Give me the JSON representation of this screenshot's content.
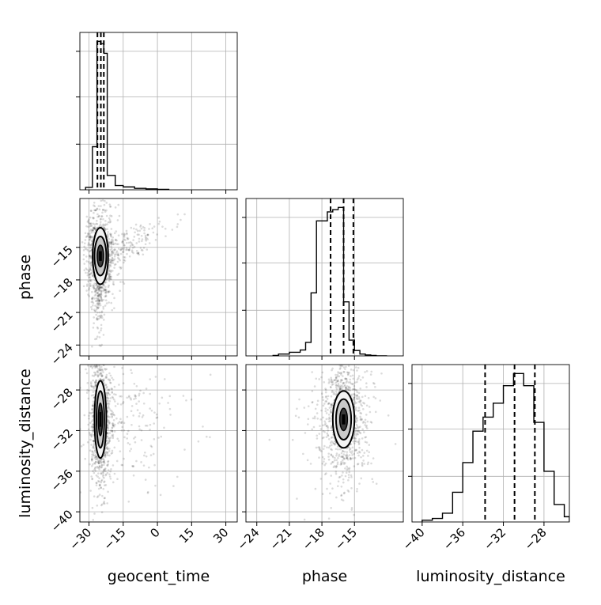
{
  "chart_data": {
    "type": "corner",
    "grid": true,
    "parameters": [
      "geocent_time",
      "phase",
      "luminosity_distance"
    ],
    "axes": {
      "geocent_time": {
        "label": "geocent_time",
        "range": [
          -34,
          35
        ],
        "ticks": [
          -30,
          -15,
          0,
          15,
          30
        ],
        "tick_labels": [
          "−30",
          "−15",
          "0",
          "15",
          "30"
        ]
      },
      "phase": {
        "label": "phase",
        "range": [
          -25,
          -10.5
        ],
        "ticks": [
          -24,
          -21,
          -18,
          -15
        ],
        "tick_labels": [
          "−24",
          "−21",
          "−18",
          "−15"
        ]
      },
      "luminosity_distance": {
        "label": "luminosity_distance",
        "range": [
          -41,
          -25.5
        ],
        "ticks": [
          -40,
          -36,
          -32,
          -28
        ],
        "tick_labels": [
          "−40",
          "−36",
          "−32",
          "−28"
        ]
      }
    },
    "histograms": [
      {
        "parameter": "geocent_time",
        "bin_edges": [
          -31.5,
          -28.5,
          -26.5,
          -25,
          -23.5,
          -22,
          -18.5,
          -15,
          -10,
          -5,
          0,
          5
        ],
        "counts": [
          0.05,
          0.9,
          3.1,
          3.05,
          2.85,
          0.3,
          0.09,
          0.06,
          0.03,
          0.02,
          0.01
        ],
        "quantiles": [
          -26.3,
          -24.8,
          -23.5
        ]
      },
      {
        "parameter": "phase",
        "bin_edges": [
          -22.5,
          -22,
          -21,
          -20,
          -19.5,
          -19,
          -18.5,
          -18,
          -17.5,
          -17,
          -16.5,
          -16,
          -15.5,
          -15,
          -14.5,
          -14,
          -13.5,
          -13,
          -12.5,
          -12
        ],
        "counts": [
          0.01,
          0.04,
          0.08,
          0.13,
          0.3,
          1.4,
          3.0,
          3.0,
          3.2,
          3.25,
          3.3,
          1.2,
          0.35,
          0.12,
          0.04,
          0.02,
          0.01,
          0,
          0
        ],
        "quantiles": [
          -17.2,
          -16.0,
          -15.1
        ]
      },
      {
        "parameter": "luminosity_distance",
        "bin_edges": [
          -40,
          -39,
          -38,
          -37,
          -36,
          -35,
          -34,
          -33,
          -32,
          -31,
          -30,
          -29,
          -28,
          -27,
          -26,
          -25.5
        ],
        "counts": [
          0.05,
          0.1,
          0.25,
          0.85,
          1.7,
          2.6,
          3.0,
          3.4,
          3.9,
          4.25,
          3.9,
          2.85,
          1.45,
          0.5,
          0.15
        ],
        "quantiles": [
          -33.8,
          -30.9,
          -28.9
        ]
      }
    ],
    "pairs": [
      {
        "x": "geocent_time",
        "y": "phase",
        "peak": [
          -25,
          -15.8
        ],
        "contours": [
          [
            1.4,
            1.0
          ],
          [
            2.6,
            1.8
          ],
          [
            3.4,
            2.6
          ]
        ]
      },
      {
        "x": "geocent_time",
        "y": "luminosity_distance",
        "peak": [
          -25,
          -30.9
        ],
        "contours": [
          [
            0.9,
            1.6
          ],
          [
            1.7,
            2.8
          ],
          [
            2.6,
            3.8
          ]
        ]
      },
      {
        "x": "phase",
        "y": "luminosity_distance",
        "peak": [
          -16.0,
          -30.9
        ],
        "contours": [
          [
            0.35,
            1.1
          ],
          [
            0.7,
            2.0
          ],
          [
            1.0,
            2.8
          ]
        ]
      }
    ]
  }
}
